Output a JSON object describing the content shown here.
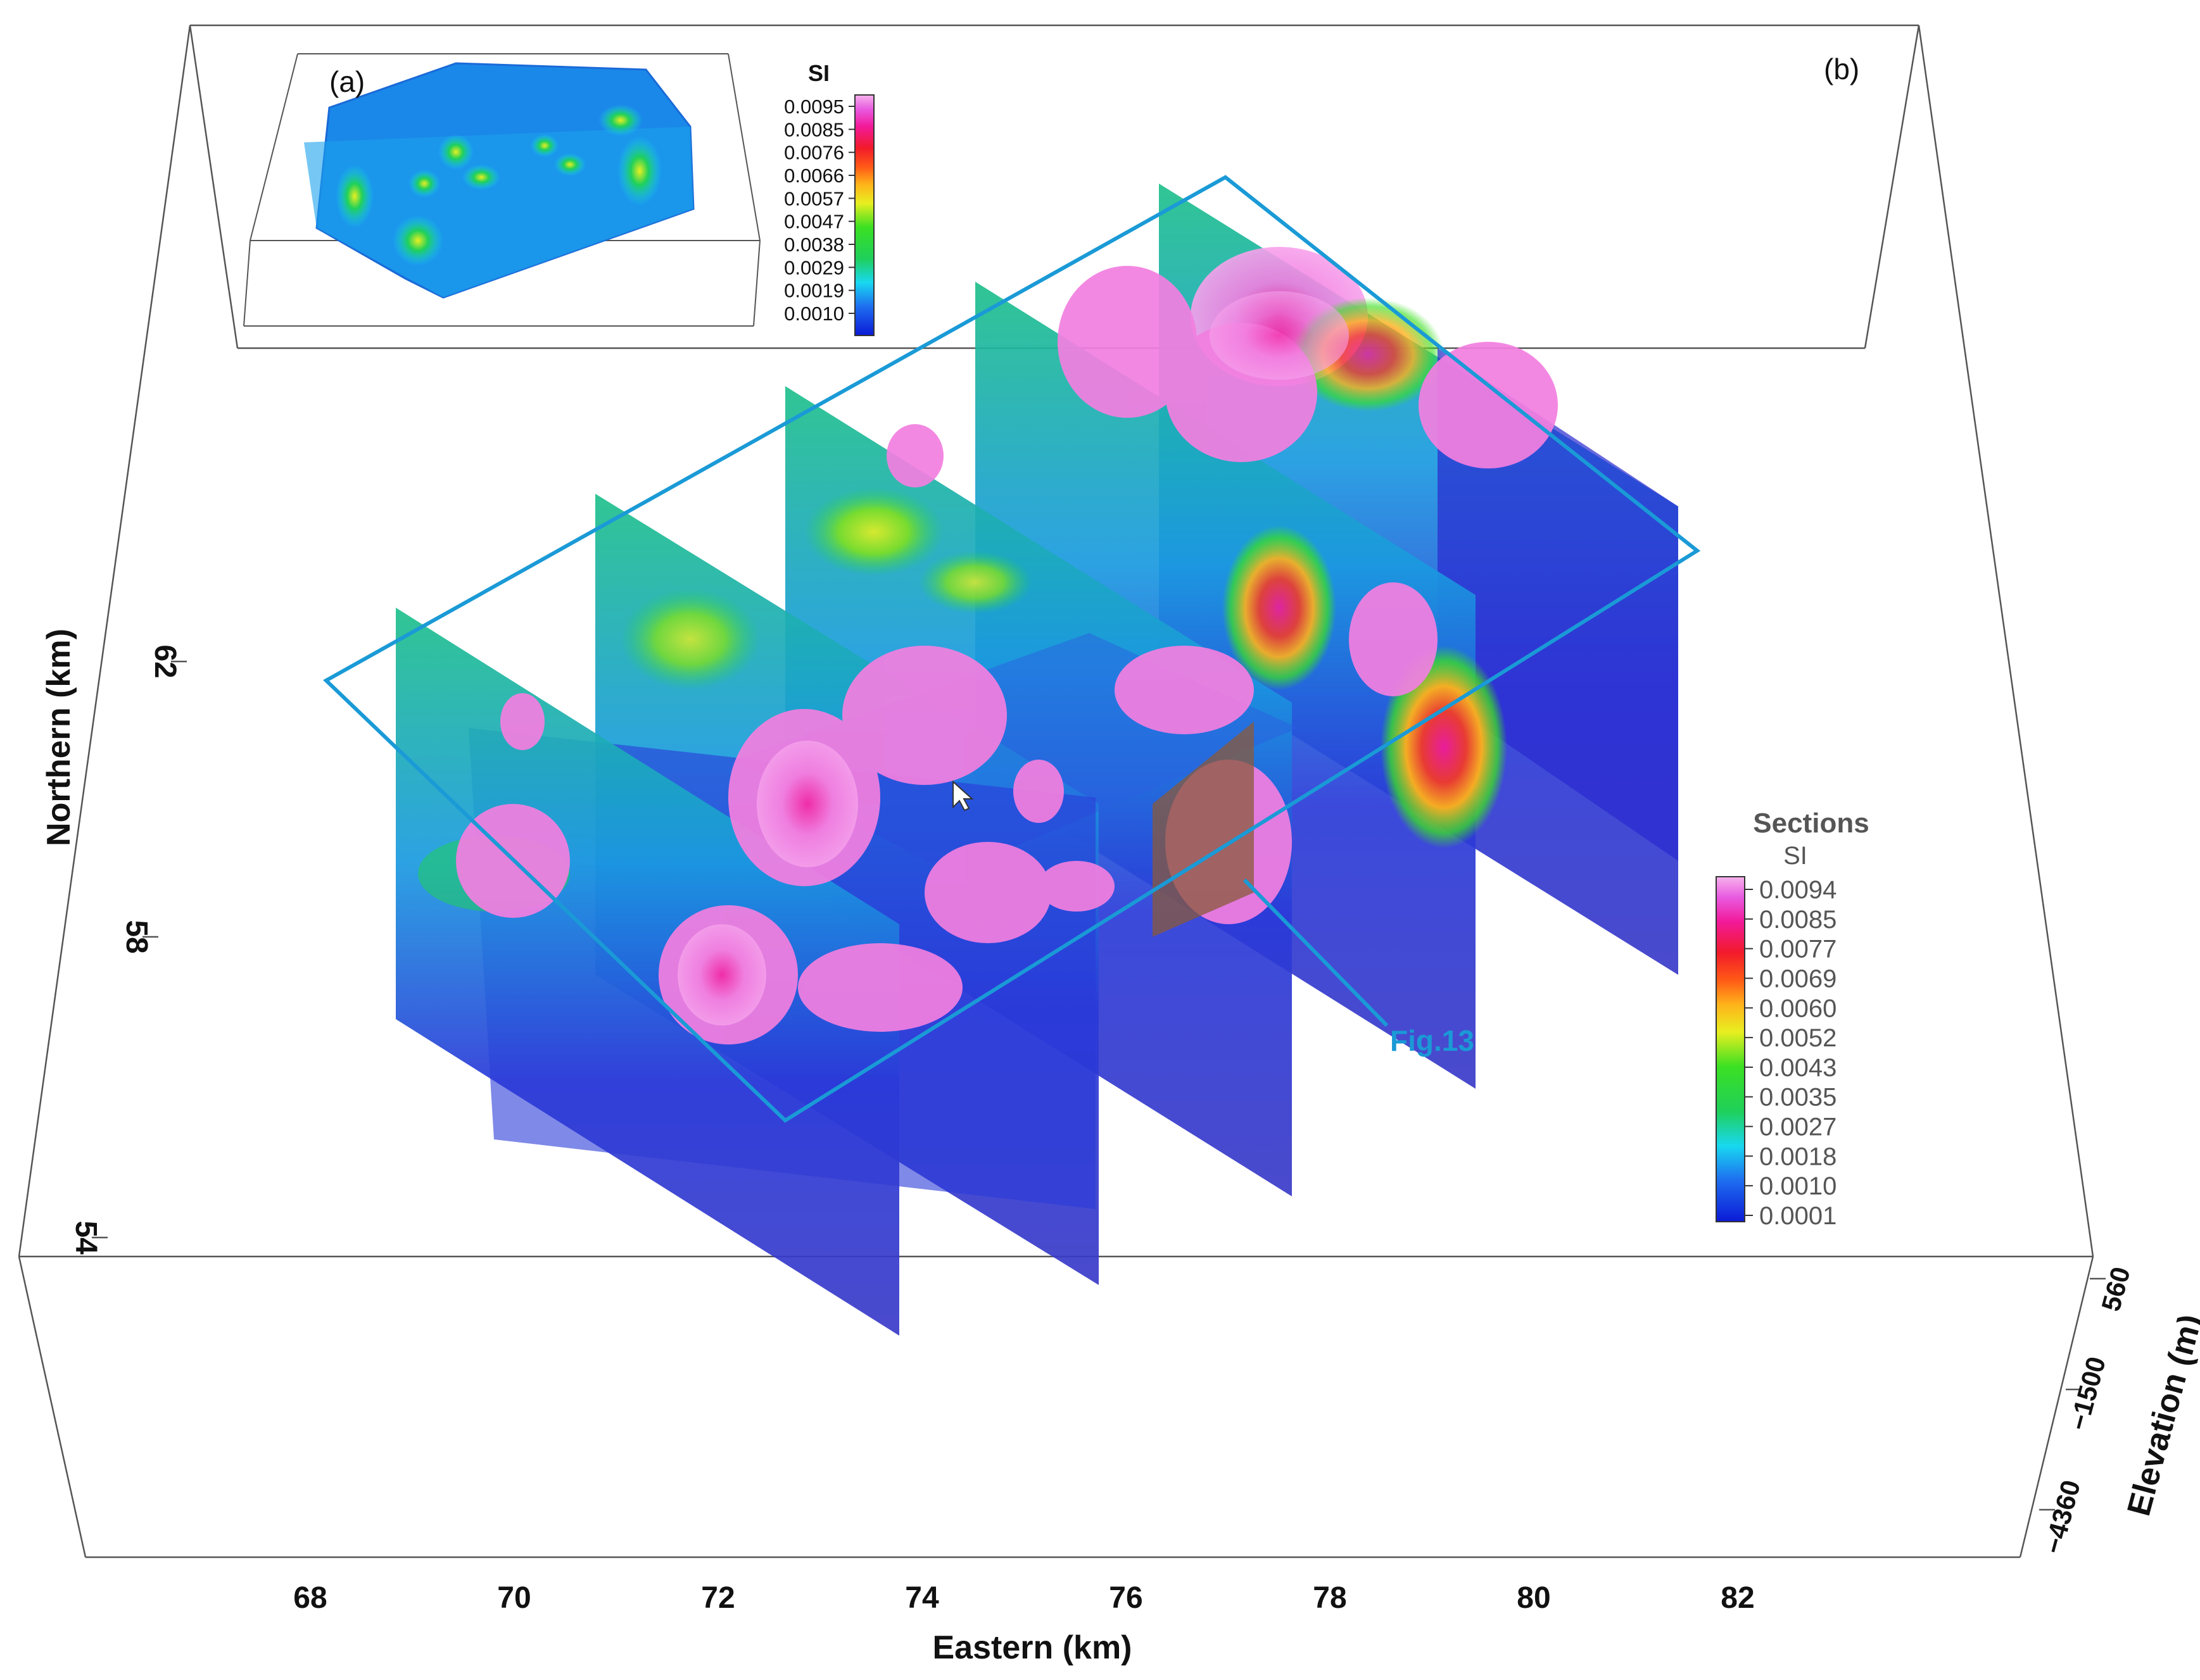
{
  "panels": {
    "a": "(a)",
    "b": "(b)"
  },
  "axes": {
    "x": {
      "title": "Eastern (km)",
      "ticks": [
        "68",
        "70",
        "72",
        "74",
        "76",
        "78",
        "80",
        "82"
      ]
    },
    "y": {
      "title": "Northern (km)",
      "ticks": [
        "62",
        "58",
        "54"
      ]
    },
    "z": {
      "title": "Elevation (m)",
      "ticks": [
        "560",
        "−1500",
        "−4360"
      ]
    }
  },
  "inset_colorbar": {
    "title": "SI",
    "labels": [
      "0.0095",
      "0.0085",
      "0.0076",
      "0.0066",
      "0.0057",
      "0.0047",
      "0.0038",
      "0.0029",
      "0.0019",
      "0.0010"
    ]
  },
  "sections_colorbar": {
    "title": "Sections",
    "subtitle": "SI",
    "labels": [
      "0.0094",
      "0.0085",
      "0.0077",
      "0.0069",
      "0.0060",
      "0.0052",
      "0.0043",
      "0.0035",
      "0.0027",
      "0.0018",
      "0.0010",
      "0.0001"
    ]
  },
  "annotation": {
    "label": "Fig.13"
  },
  "colors": {
    "box": "#555555",
    "outline": "#1a9ad6",
    "deep_blue": "#2a2ad0",
    "anomaly_pink": "#f27fe0",
    "colormap": [
      "#0b1ad6",
      "#1e6ef0",
      "#18d8f0",
      "#1fd05a",
      "#3be022",
      "#e8ef20",
      "#ffb21a",
      "#ff5a16",
      "#f21a2a",
      "#f21a9a",
      "#e85ae0",
      "#f7b2ec"
    ]
  }
}
